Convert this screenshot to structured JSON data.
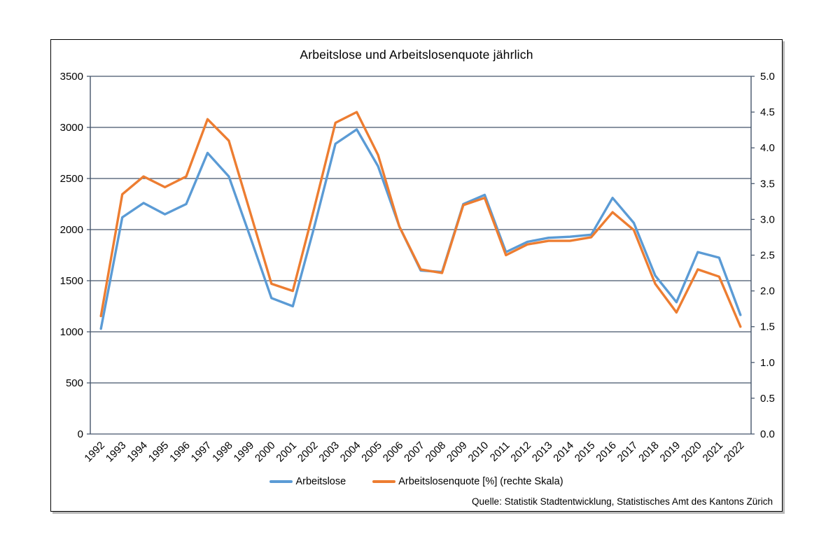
{
  "chart_data": {
    "type": "line",
    "title": "Arbeitslose und Arbeitslosenquote jährlich",
    "source_note": "Quelle: Statistik Stadtentwicklung, Statistisches Amt des Kantons Zürich",
    "categories": [
      "1992",
      "1993",
      "1994",
      "1995",
      "1996",
      "1997",
      "1998",
      "1999",
      "2000",
      "2001",
      "2002",
      "2003",
      "2004",
      "2005",
      "2006",
      "2007",
      "2008",
      "2009",
      "2010",
      "2011",
      "2012",
      "2013",
      "2014",
      "2015",
      "2016",
      "2017",
      "2018",
      "2019",
      "2020",
      "2021",
      "2022"
    ],
    "series": [
      {
        "name": "Arbeitslose",
        "axis": "left",
        "color": "#5B9BD5",
        "values": [
          1030,
          2120,
          2260,
          2150,
          2250,
          2750,
          2520,
          1930,
          1330,
          1250,
          2020,
          2840,
          2980,
          2620,
          2030,
          1600,
          1585,
          2250,
          2340,
          1780,
          1880,
          1920,
          1930,
          1950,
          2310,
          2065,
          1550,
          1290,
          1780,
          1725,
          1165
        ]
      },
      {
        "name": "Arbeitslosenquote [%] (rechte Skala)",
        "axis": "right",
        "color": "#ED7D31",
        "values": [
          1.65,
          3.35,
          3.6,
          3.45,
          3.6,
          4.4,
          4.1,
          3.1,
          2.1,
          2.0,
          3.15,
          4.35,
          4.5,
          3.9,
          2.9,
          2.3,
          2.25,
          3.2,
          3.3,
          2.5,
          2.65,
          2.7,
          2.7,
          2.75,
          3.1,
          2.85,
          2.1,
          1.7,
          2.3,
          2.2,
          1.5
        ]
      }
    ],
    "left_axis": {
      "min": 0,
      "max": 3500,
      "step": 500,
      "tick_labels": [
        "0",
        "500",
        "1000",
        "1500",
        "2000",
        "2500",
        "3000",
        "3500"
      ]
    },
    "right_axis": {
      "min": 0,
      "max": 5,
      "step": 0.5,
      "tick_labels": [
        "0.0",
        "0.5",
        "1.0",
        "1.5",
        "2.0",
        "2.5",
        "3.0",
        "3.5",
        "4.0",
        "4.5",
        "5.0"
      ]
    },
    "grid": "horizontal",
    "legend_position": "bottom",
    "styles": {
      "grid_color": "#44546A",
      "axis_color": "#44546A",
      "text_color": "#000000",
      "frame_border_color": "#000000",
      "background": "#ffffff"
    }
  }
}
